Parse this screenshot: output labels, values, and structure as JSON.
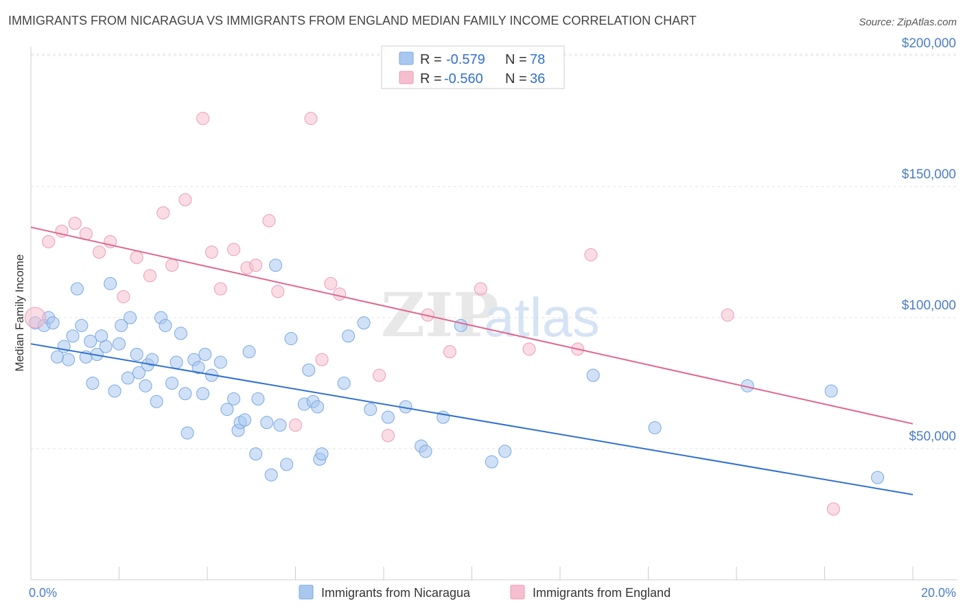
{
  "title": "IMMIGRANTS FROM NICARAGUA VS IMMIGRANTS FROM ENGLAND MEDIAN FAMILY INCOME CORRELATION CHART",
  "source": "Source: ZipAtlas.com",
  "watermark": {
    "zip": "ZIP",
    "atlas": "atlas"
  },
  "chart_data": {
    "type": "scatter",
    "xlabel": "",
    "ylabel": "Median Family Income",
    "xlim": [
      0,
      20
    ],
    "ylim": [
      0,
      210000
    ],
    "x_tick_labels": [
      "0.0%",
      "20.0%"
    ],
    "y_ticks": [
      50000,
      100000,
      150000,
      200000
    ],
    "y_tick_labels": [
      "$50,000",
      "$100,000",
      "$150,000",
      "$200,000"
    ],
    "grid": true,
    "legend_position": "top-center",
    "stats": [
      {
        "r_label": "R = ",
        "r_value": "-0.579",
        "n_label": "N = ",
        "n_value": "78"
      },
      {
        "r_label": "R = ",
        "r_value": "-0.560",
        "n_label": "N = ",
        "n_value": "36"
      }
    ],
    "series": [
      {
        "name": "Immigrants from Nicaragua",
        "color": "#a9c8f0",
        "stroke": "#7aa6e0",
        "line_color": "#2f6fd0",
        "trend": [
          [
            0,
            90000
          ],
          [
            20,
            32500
          ]
        ],
        "points": [
          [
            0.1,
            98000
          ],
          [
            0.3,
            97000
          ],
          [
            0.4,
            100000
          ],
          [
            0.5,
            98000
          ],
          [
            0.6,
            85000
          ],
          [
            0.75,
            89000
          ],
          [
            0.85,
            84000
          ],
          [
            0.95,
            93000
          ],
          [
            1.05,
            111000
          ],
          [
            1.15,
            97000
          ],
          [
            1.25,
            85000
          ],
          [
            1.35,
            91000
          ],
          [
            1.4,
            75000
          ],
          [
            1.5,
            86000
          ],
          [
            1.6,
            93000
          ],
          [
            1.7,
            89000
          ],
          [
            1.8,
            113000
          ],
          [
            1.9,
            72000
          ],
          [
            2.0,
            90000
          ],
          [
            2.05,
            97000
          ],
          [
            2.2,
            77000
          ],
          [
            2.25,
            100000
          ],
          [
            2.4,
            86000
          ],
          [
            2.45,
            79000
          ],
          [
            2.6,
            74000
          ],
          [
            2.65,
            82000
          ],
          [
            2.75,
            84000
          ],
          [
            2.85,
            68000
          ],
          [
            2.95,
            100000
          ],
          [
            3.05,
            97000
          ],
          [
            3.2,
            75000
          ],
          [
            3.3,
            83000
          ],
          [
            3.4,
            94000
          ],
          [
            3.5,
            71000
          ],
          [
            3.55,
            56000
          ],
          [
            3.7,
            84000
          ],
          [
            3.8,
            81000
          ],
          [
            3.9,
            71000
          ],
          [
            3.95,
            86000
          ],
          [
            4.1,
            78000
          ],
          [
            4.3,
            83000
          ],
          [
            4.45,
            65000
          ],
          [
            4.6,
            69000
          ],
          [
            4.7,
            57000
          ],
          [
            4.75,
            60000
          ],
          [
            4.85,
            61000
          ],
          [
            4.95,
            87000
          ],
          [
            5.1,
            48000
          ],
          [
            5.15,
            69000
          ],
          [
            5.35,
            60000
          ],
          [
            5.45,
            40000
          ],
          [
            5.55,
            120000
          ],
          [
            5.65,
            59000
          ],
          [
            5.8,
            44000
          ],
          [
            5.9,
            92000
          ],
          [
            6.2,
            67000
          ],
          [
            6.3,
            80000
          ],
          [
            6.4,
            68000
          ],
          [
            6.5,
            66000
          ],
          [
            6.55,
            46000
          ],
          [
            6.6,
            48000
          ],
          [
            7.1,
            75000
          ],
          [
            7.2,
            93000
          ],
          [
            7.55,
            98000
          ],
          [
            7.7,
            65000
          ],
          [
            8.1,
            62000
          ],
          [
            8.5,
            66000
          ],
          [
            8.85,
            51000
          ],
          [
            8.95,
            49000
          ],
          [
            9.35,
            62000
          ],
          [
            9.75,
            97000
          ],
          [
            10.45,
            45000
          ],
          [
            10.75,
            49000
          ],
          [
            12.75,
            78000
          ],
          [
            14.15,
            58000
          ],
          [
            16.25,
            74000
          ],
          [
            18.15,
            72000
          ],
          [
            19.2,
            39000
          ]
        ]
      },
      {
        "name": "Immigrants from England",
        "color": "#f6bfd0",
        "stroke": "#ee9ab5",
        "line_color": "#e0658e",
        "trend": [
          [
            0,
            134500
          ],
          [
            20,
            59500
          ]
        ],
        "points": [
          [
            0.1,
            100000
          ],
          [
            0.4,
            129000
          ],
          [
            0.7,
            133000
          ],
          [
            1.0,
            136000
          ],
          [
            1.25,
            132000
          ],
          [
            1.55,
            125000
          ],
          [
            1.8,
            129000
          ],
          [
            2.1,
            108000
          ],
          [
            2.4,
            123000
          ],
          [
            2.7,
            116000
          ],
          [
            3.0,
            140000
          ],
          [
            3.2,
            120000
          ],
          [
            3.5,
            145000
          ],
          [
            3.9,
            176000
          ],
          [
            4.1,
            125000
          ],
          [
            4.3,
            111000
          ],
          [
            4.6,
            126000
          ],
          [
            4.9,
            119000
          ],
          [
            5.1,
            120000
          ],
          [
            5.4,
            137000
          ],
          [
            5.6,
            110000
          ],
          [
            6.0,
            59000
          ],
          [
            6.35,
            176000
          ],
          [
            6.6,
            84000
          ],
          [
            6.8,
            113000
          ],
          [
            7.0,
            109000
          ],
          [
            7.9,
            78000
          ],
          [
            8.1,
            55000
          ],
          [
            9.0,
            101000
          ],
          [
            9.5,
            87000
          ],
          [
            10.2,
            111000
          ],
          [
            11.3,
            88000
          ],
          [
            12.4,
            88000
          ],
          [
            12.7,
            124000
          ],
          [
            15.8,
            101000
          ],
          [
            18.2,
            27000
          ]
        ]
      }
    ]
  }
}
